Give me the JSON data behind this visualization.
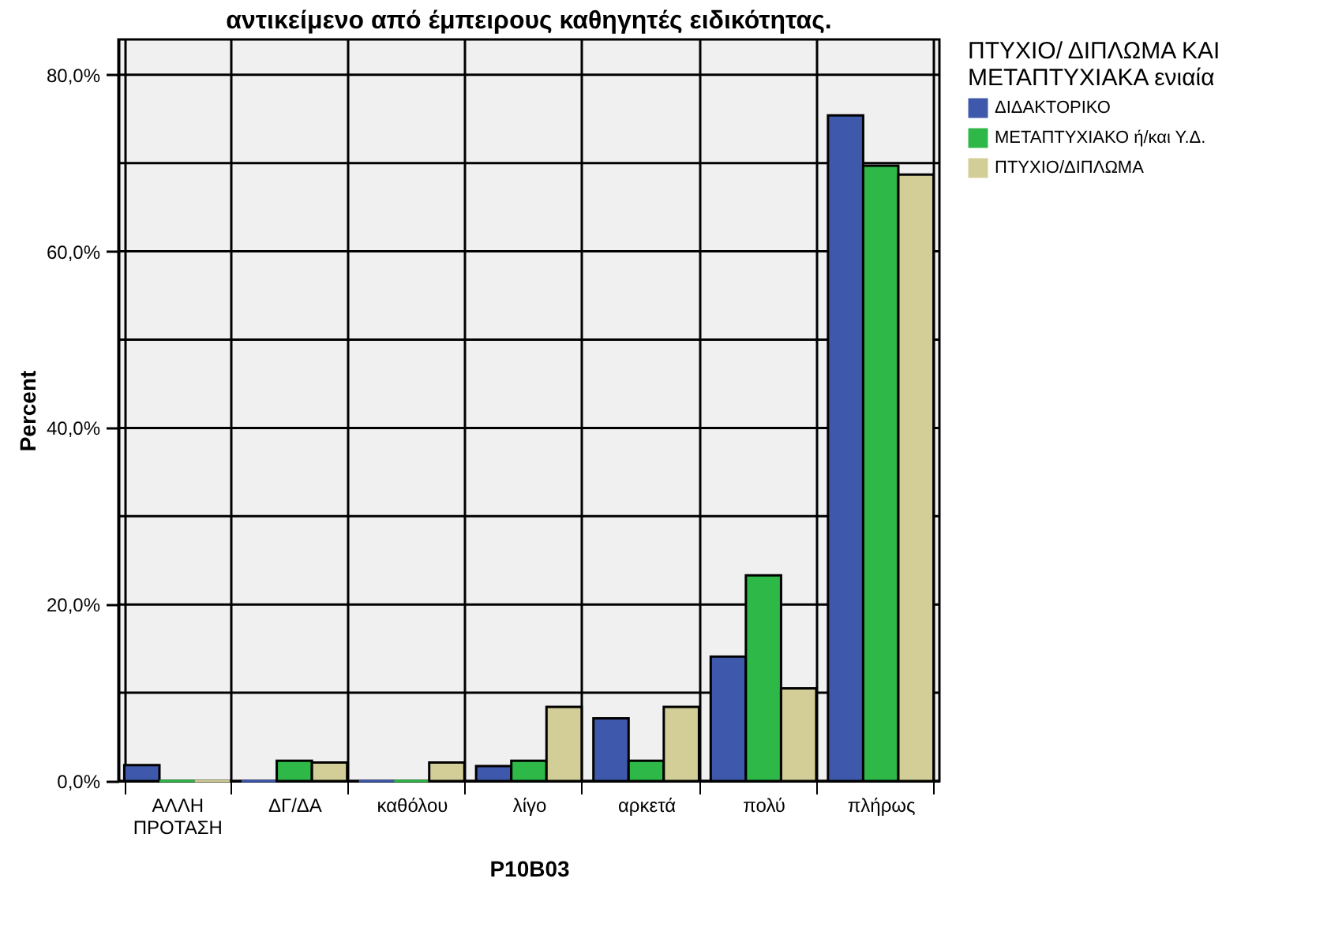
{
  "chart_data": {
    "type": "bar",
    "title": "αντικείμενο από έμπειρους καθηγητές ειδικότητας.",
    "xlabel": "P10B03",
    "ylabel": "Percent",
    "legend_title": "ΠΤΥΧΙΟ/ ΔΙΠΛΩΜΑ ΚΑΙ ΜΕΤΑΠΤΥΧΙΑΚΑ ενιαία",
    "legend": "top right",
    "categories": [
      "ΑΛΛΗ ΠΡΟΤΑΣΗ",
      "ΔΓ/ΔΑ",
      "καθόλου",
      "λίγο",
      "αρκετά",
      "πολύ",
      "πλήρως"
    ],
    "series": [
      {
        "name": "ΔΙΔΑΚΤΟΡΙΚΟ",
        "color": "#3e58ac",
        "values": [
          1.8,
          0,
          0,
          1.7,
          7.1,
          14.1,
          75.4
        ]
      },
      {
        "name": "ΜΕΤΑΠΤΥΧΙΑΚΟ ή/και Υ.Δ.",
        "color": "#2eb848",
        "values": [
          0,
          2.3,
          0,
          2.3,
          2.3,
          23.3,
          69.7
        ]
      },
      {
        "name": "ΠΤΥΧΙΟ/ΔΙΠΛΩΜΑ",
        "color": "#d3ce97",
        "values": [
          0,
          2.1,
          2.1,
          8.4,
          8.4,
          10.5,
          68.7
        ]
      }
    ],
    "ylim": [
      0,
      84
    ],
    "yticks": [
      {
        "value": 0,
        "label": "0,0%"
      },
      {
        "value": 10,
        "label": null
      },
      {
        "value": 20,
        "label": "20,0%"
      },
      {
        "value": 30,
        "label": null
      },
      {
        "value": 40,
        "label": "40,0%"
      },
      {
        "value": 50,
        "label": null
      },
      {
        "value": 60,
        "label": "60,0%"
      },
      {
        "value": 70,
        "label": null
      },
      {
        "value": 80,
        "label": "80,0%"
      }
    ],
    "grid": true
  }
}
